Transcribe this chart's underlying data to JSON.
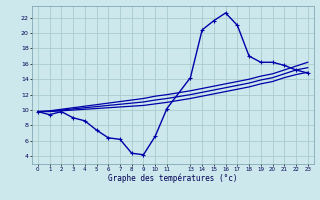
{
  "xlabel": "Graphe des températures (°c)",
  "background_color": "#cce8ec",
  "grid_color": "#aacccc",
  "line_color": "#0000aa",
  "hours": [
    0,
    1,
    2,
    3,
    4,
    5,
    6,
    7,
    8,
    9,
    10,
    11,
    13,
    14,
    15,
    16,
    17,
    18,
    19,
    20,
    21,
    22,
    23
  ],
  "temp_curve": [
    9.8,
    9.4,
    9.8,
    9.0,
    8.6,
    7.4,
    6.4,
    6.2,
    4.4,
    4.2,
    6.6,
    10.2,
    14.2,
    20.4,
    21.6,
    22.6,
    21.0,
    17.0,
    16.2,
    16.2,
    15.8,
    15.2,
    14.8
  ],
  "line_high": [
    9.8,
    9.9,
    10.1,
    10.3,
    10.5,
    10.7,
    10.9,
    11.1,
    11.3,
    11.5,
    11.8,
    12.0,
    12.5,
    12.8,
    13.1,
    13.4,
    13.7,
    14.0,
    14.4,
    14.7,
    15.2,
    15.7,
    16.2
  ],
  "line_mid": [
    9.8,
    9.85,
    10.0,
    10.15,
    10.3,
    10.45,
    10.6,
    10.75,
    10.9,
    11.05,
    11.3,
    11.5,
    12.0,
    12.3,
    12.6,
    12.9,
    13.2,
    13.5,
    13.9,
    14.2,
    14.7,
    15.2,
    15.5
  ],
  "line_low": [
    9.8,
    9.8,
    9.9,
    10.0,
    10.1,
    10.2,
    10.3,
    10.4,
    10.5,
    10.6,
    10.8,
    11.0,
    11.5,
    11.8,
    12.1,
    12.4,
    12.7,
    13.0,
    13.4,
    13.7,
    14.2,
    14.6,
    14.9
  ],
  "ylim": [
    3.0,
    23.5
  ],
  "xlim": [
    -0.5,
    23.5
  ],
  "yticks": [
    4,
    6,
    8,
    10,
    12,
    14,
    16,
    18,
    20,
    22
  ],
  "xticks": [
    0,
    1,
    2,
    3,
    4,
    5,
    6,
    7,
    8,
    9,
    10,
    11,
    13,
    14,
    15,
    16,
    17,
    18,
    19,
    20,
    21,
    22,
    23
  ],
  "xtick_labels": [
    "0",
    "1",
    "2",
    "3",
    "4",
    "5",
    "6",
    "7",
    "8",
    "9",
    "10",
    "11",
    "13",
    "14",
    "15",
    "16",
    "17",
    "18",
    "19",
    "20",
    "21",
    "22",
    "23"
  ]
}
